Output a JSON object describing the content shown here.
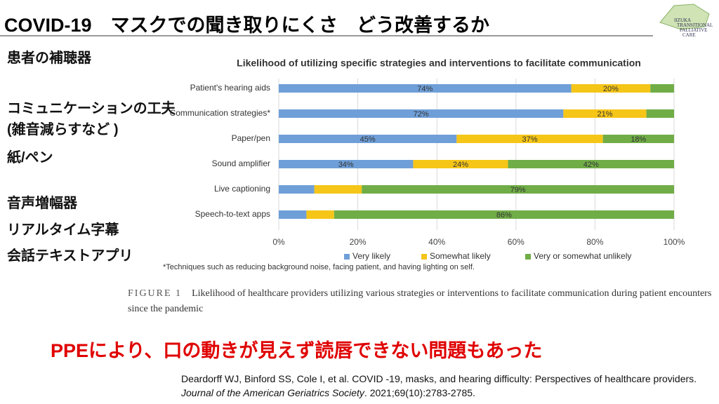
{
  "slide_title": "COVID-19　マスクでの聞き取りにくさ　どう改善するか",
  "logo": [
    "IIZUKA",
    "TRANSITIONAL",
    "PALLIATIVE",
    "CARE"
  ],
  "side_labels": [
    "患者の補聴器",
    "コミュニケーションの工夫",
    "(雑音減らすなど )",
    "紙/ペン",
    "音声増幅器",
    "リアルタイム字幕",
    "会話テキストアプリ"
  ],
  "chart_data": {
    "type": "stacked-bar-horizontal",
    "title": "Likelihood of utilizing specific strategies and interventions to facilitate communication",
    "categories": [
      "Patient's hearing aids",
      "Communication strategies*",
      "Paper/pen",
      "Sound amplifier",
      "Live captioning",
      "Speech-to-text apps"
    ],
    "series": [
      {
        "name": "Very likely",
        "color": "#6f9fd8",
        "values": [
          74,
          72,
          45,
          34,
          9,
          7
        ],
        "value_labels": [
          "74%",
          "72%",
          "45%",
          "34%",
          null,
          null
        ]
      },
      {
        "name": "Somewhat likely",
        "color": "#f5c518",
        "values": [
          20,
          21,
          37,
          24,
          12,
          7
        ],
        "value_labels": [
          "20%",
          "21%",
          "37%",
          "24%",
          null,
          null
        ]
      },
      {
        "name": "Very or somewhat unlikely",
        "color": "#70ad47",
        "values": [
          6,
          7,
          18,
          42,
          79,
          86
        ],
        "value_labels": [
          null,
          null,
          "18%",
          "42%",
          "79%",
          "86%"
        ]
      }
    ],
    "xlim": [
      0,
      100
    ],
    "xticks": [
      {
        "value": 0,
        "label": "0%"
      },
      {
        "value": 20,
        "label": "20%"
      },
      {
        "value": 40,
        "label": "40%"
      },
      {
        "value": 60,
        "label": "60%"
      },
      {
        "value": 80,
        "label": "80%"
      },
      {
        "value": 100,
        "label": "100%"
      }
    ],
    "grid": true,
    "legend": "bottom",
    "footnote": "*Techniques such as reducing background noise, facing patient, and having lighting on self."
  },
  "caption": {
    "label": "FIGURE 1",
    "text": "Likelihood of healthcare providers utilizing various strategies or interventions to facilitate communication during patient encounters since the pandemic"
  },
  "highlight": "PPEにより、口の動きが見えず読唇できない問題もあった",
  "reference": {
    "text": "Deardorff WJ, Binford SS, Cole I, et al. COVID -19, masks, and hearing difficulty: Perspectives of healthcare providers. ",
    "journal": "Journal of the American Geriatrics Society",
    "details": ". 2021;69(10):2783-2785."
  }
}
